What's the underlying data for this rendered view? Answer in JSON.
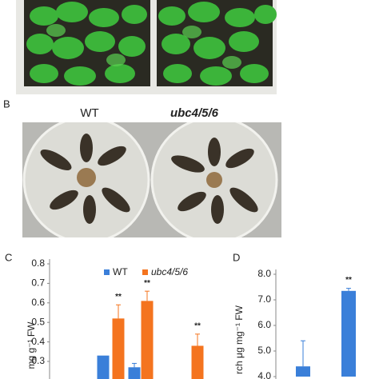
{
  "panel_labels": [
    "B",
    "C",
    "D"
  ],
  "photo_labels": {
    "left": "WT",
    "right": "ubc4/5/6"
  },
  "chart_data": [
    {
      "type": "bar",
      "ylabel": "mg g⁻¹ FW",
      "ylim": [
        0.2,
        0.8
      ],
      "yticks": [
        0.3,
        0.4,
        0.5,
        0.6,
        0.7,
        0.8
      ],
      "categories": [
        null,
        null,
        null
      ],
      "legend": "top",
      "series": [
        {
          "name": "WT",
          "color": "#3a7fd9",
          "values": [
            0.33,
            0.27,
            null
          ],
          "errors": [
            null,
            0.02,
            null
          ],
          "markers": [
            null,
            null,
            null
          ]
        },
        {
          "name": "ubc4/5/6",
          "color": "#f4741f",
          "values": [
            0.52,
            0.61,
            0.38
          ],
          "errors": [
            0.07,
            0.05,
            0.06
          ],
          "markers": [
            "**",
            "**",
            "**"
          ]
        }
      ]
    },
    {
      "type": "bar",
      "ylabel": "rch μg mg⁻¹ FW",
      "ylim": [
        4,
        8
      ],
      "yticks": [
        {
          "value": 4,
          "label": "4.0"
        },
        {
          "value": 5,
          "label": "5.0"
        },
        {
          "value": 6,
          "label": "6.0"
        },
        {
          "value": 7,
          "label": "7.0"
        },
        {
          "value": 8,
          "label": "8.0"
        }
      ],
      "categories": [
        null,
        null
      ],
      "series": [
        {
          "name": null,
          "color": "#3a7fd9",
          "values": [
            4.4,
            null
          ],
          "errors": [
            1.0,
            null
          ],
          "markers": [
            null,
            null
          ]
        },
        {
          "name": null,
          "color": "#3a7fd9",
          "values": [
            null,
            7.35
          ],
          "errors": [
            null,
            0.1
          ],
          "markers": [
            null,
            "**"
          ]
        }
      ]
    }
  ]
}
